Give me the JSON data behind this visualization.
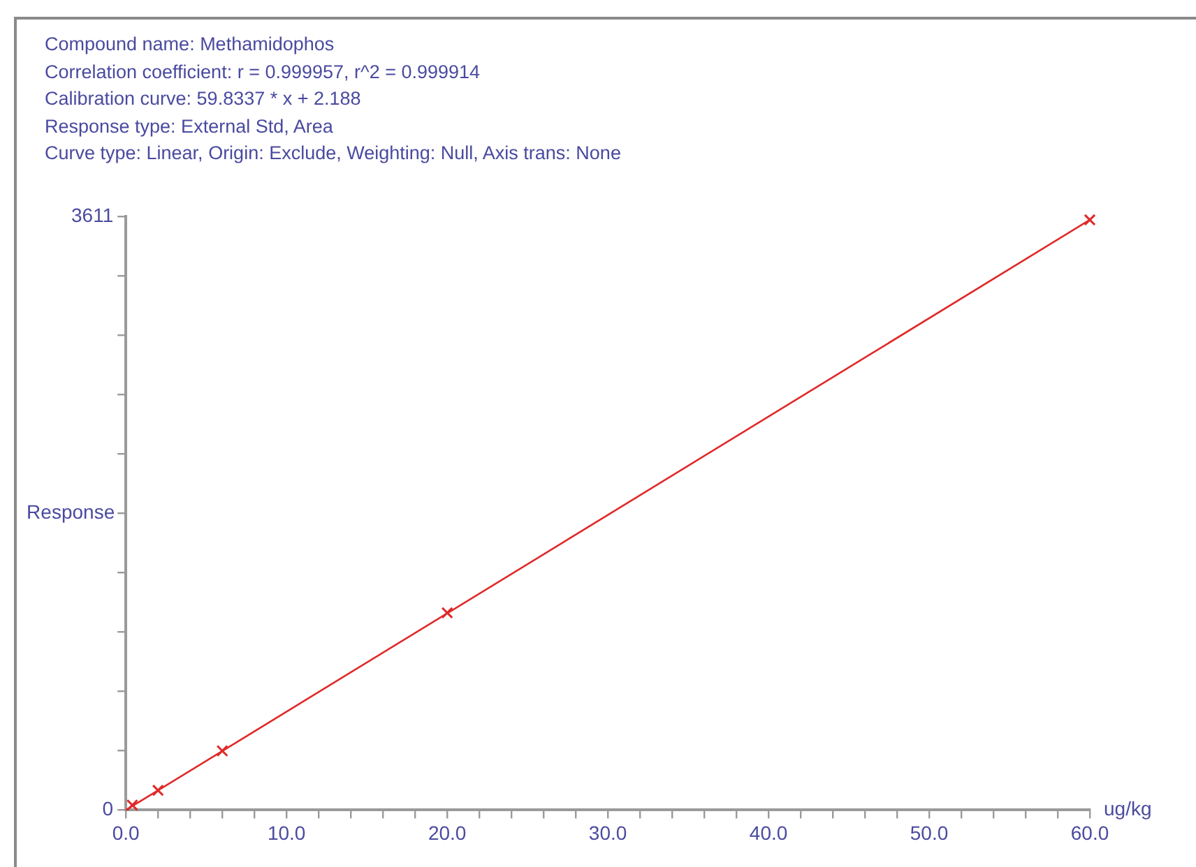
{
  "chart_data": {
    "type": "scatter",
    "annotations": [
      "Compound name: Methamidophos",
      "Correlation coefficient: r = 0.999957, r^2 = 0.999914",
      "Calibration curve: 59.8337 * x + 2.188",
      "Response type: External Std, Area",
      "Curve type: Linear, Origin: Exclude, Weighting: Null, Axis trans: None"
    ],
    "xlabel": "ug/kg",
    "ylabel": "Response",
    "xlim": [
      0,
      60
    ],
    "xticks": [
      {
        "value": 0,
        "label": "0.0"
      },
      {
        "value": 2,
        "label": null
      },
      {
        "value": 4,
        "label": null
      },
      {
        "value": 6,
        "label": null
      },
      {
        "value": 8,
        "label": null
      },
      {
        "value": 10,
        "label": "10.0"
      },
      {
        "value": 12,
        "label": null
      },
      {
        "value": 14,
        "label": null
      },
      {
        "value": 16,
        "label": null
      },
      {
        "value": 18,
        "label": null
      },
      {
        "value": 20,
        "label": "20.0"
      },
      {
        "value": 22,
        "label": null
      },
      {
        "value": 24,
        "label": null
      },
      {
        "value": 26,
        "label": null
      },
      {
        "value": 28,
        "label": null
      },
      {
        "value": 30,
        "label": "30.0"
      },
      {
        "value": 32,
        "label": null
      },
      {
        "value": 34,
        "label": null
      },
      {
        "value": 36,
        "label": null
      },
      {
        "value": 38,
        "label": null
      },
      {
        "value": 40,
        "label": "40.0"
      },
      {
        "value": 42,
        "label": null
      },
      {
        "value": 44,
        "label": null
      },
      {
        "value": 46,
        "label": null
      },
      {
        "value": 48,
        "label": null
      },
      {
        "value": 50,
        "label": "50.0"
      },
      {
        "value": 52,
        "label": null
      },
      {
        "value": 54,
        "label": null
      },
      {
        "value": 56,
        "label": null
      },
      {
        "value": 58,
        "label": null
      },
      {
        "value": 60,
        "label": "60.0"
      }
    ],
    "ylim": [
      0,
      3611
    ],
    "yticks": [
      0,
      {
        "value": 361.1,
        "label": null
      },
      {
        "value": 722.2,
        "label": null
      },
      {
        "value": 1083.3,
        "label": null
      },
      {
        "value": 1444.4,
        "label": null
      },
      {
        "value": 1805.5,
        "label": null
      },
      {
        "value": 2166.6,
        "label": null
      },
      {
        "value": 2527.7,
        "label": null
      },
      {
        "value": 2888.8,
        "label": null
      },
      {
        "value": 3249.9,
        "label": null
      },
      3611
    ],
    "grid": false,
    "series": [
      {
        "type": "scatter",
        "marker": "cross",
        "color": "#e02828",
        "x": [
          0.4,
          2,
          6,
          20,
          60
        ],
        "values": [
          30,
          120,
          360,
          1200,
          3590
        ]
      },
      {
        "type": "line",
        "marker": "none",
        "line_style": "solid",
        "color": "#e02828",
        "x": [
          0,
          60
        ],
        "values": [
          0,
          3590
        ]
      }
    ]
  }
}
